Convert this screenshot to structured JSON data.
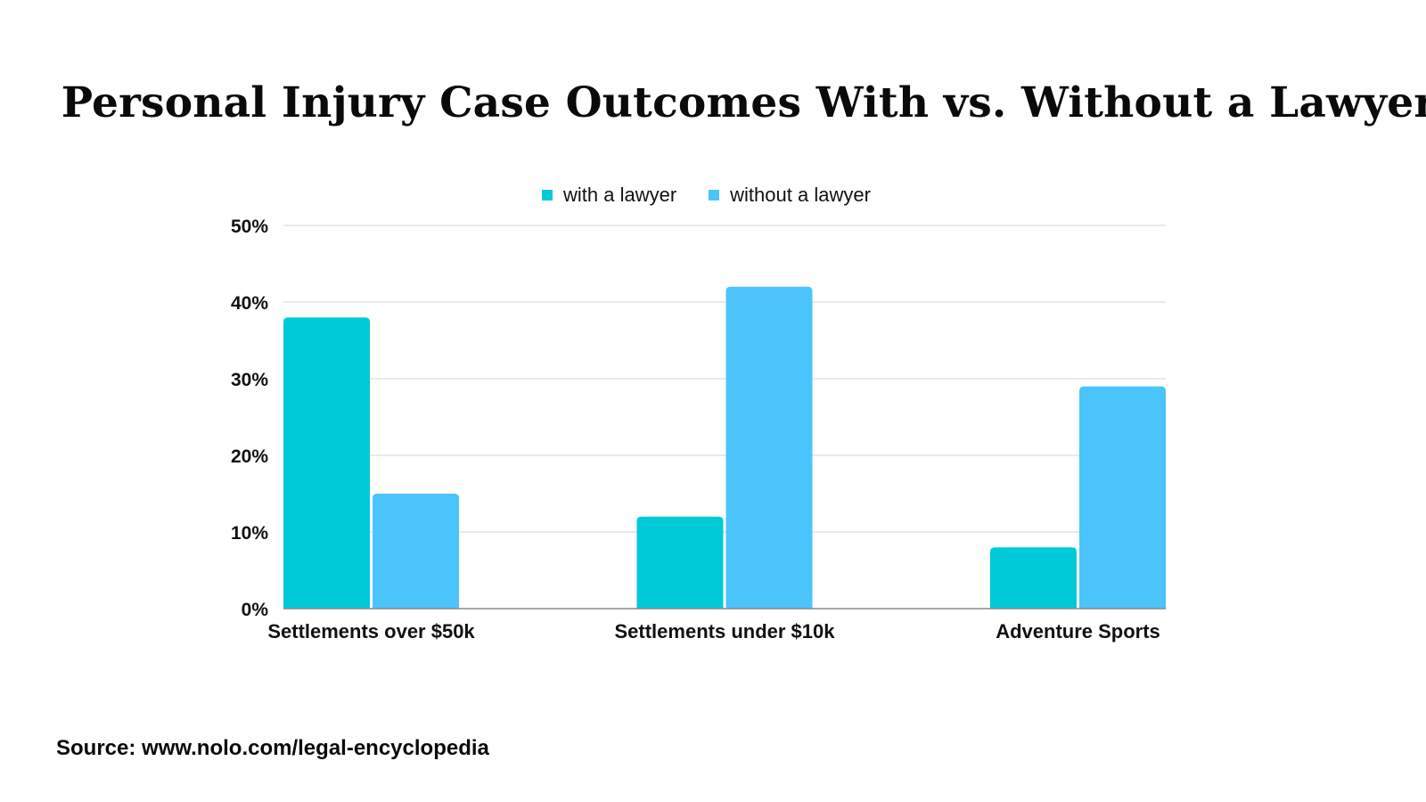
{
  "chart_data": {
    "type": "bar",
    "title": "Personal Injury Case Outcomes With vs. Without a Lawyer",
    "categories": [
      "Settlements over $50k",
      "Settlements under $10k",
      "Adventure Sports"
    ],
    "series": [
      {
        "name": "with a lawyer",
        "values": [
          38,
          12,
          8
        ],
        "color": "#00c9d8"
      },
      {
        "name": "without a lawyer",
        "values": [
          15,
          42,
          29
        ],
        "color": "#4bc4fb"
      }
    ],
    "y_tick_labels": [
      "0%",
      "10%",
      "20%",
      "30%",
      "40%",
      "50%"
    ],
    "y_ticks": [
      0,
      10,
      20,
      30,
      40,
      50
    ],
    "ylim": [
      0,
      50
    ],
    "grid": true,
    "legend_position": "top-center"
  },
  "footer": {
    "source": "Source: www.nolo.com/legal-encyclopedia"
  }
}
